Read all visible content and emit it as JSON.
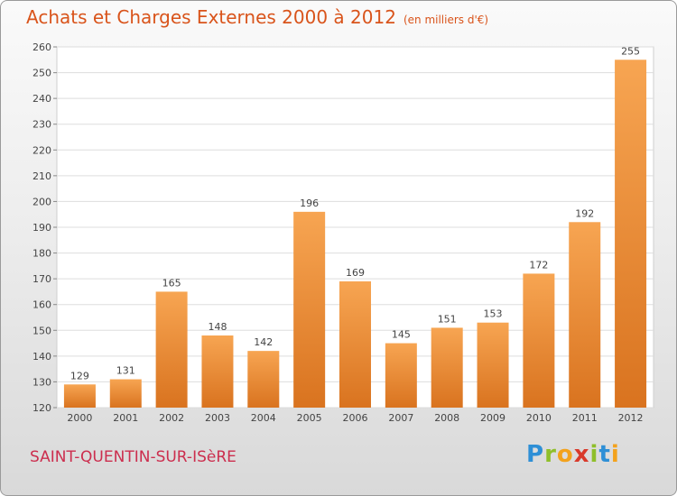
{
  "header": {
    "title": "Achats et Charges Externes 2000 à 2012",
    "subtitle": "(en milliers d'€)"
  },
  "commune": "SAINT-QUENTIN-SUR-ISèRE",
  "logo": {
    "letters": [
      "P",
      "r",
      "o",
      "x",
      "i",
      "t",
      "i"
    ],
    "colors": [
      "#2e8fd6",
      "#8fbf2a",
      "#f3a21c",
      "#d93a2b",
      "#8fbf2a",
      "#2e8fd6",
      "#f3a21c"
    ]
  },
  "chart_data": {
    "type": "bar",
    "title": "Achats et Charges Externes 2000 à 2012",
    "categories": [
      "2000",
      "2001",
      "2002",
      "2003",
      "2004",
      "2005",
      "2006",
      "2007",
      "2008",
      "2009",
      "2010",
      "2011",
      "2012"
    ],
    "values": [
      129,
      131,
      165,
      148,
      142,
      196,
      169,
      145,
      151,
      153,
      172,
      192,
      255
    ],
    "ylim": [
      120,
      260
    ],
    "yticks": [
      120,
      130,
      140,
      150,
      160,
      170,
      180,
      190,
      200,
      210,
      220,
      230,
      240,
      250,
      260
    ],
    "grid": true,
    "bar_color": "#f0922e"
  }
}
